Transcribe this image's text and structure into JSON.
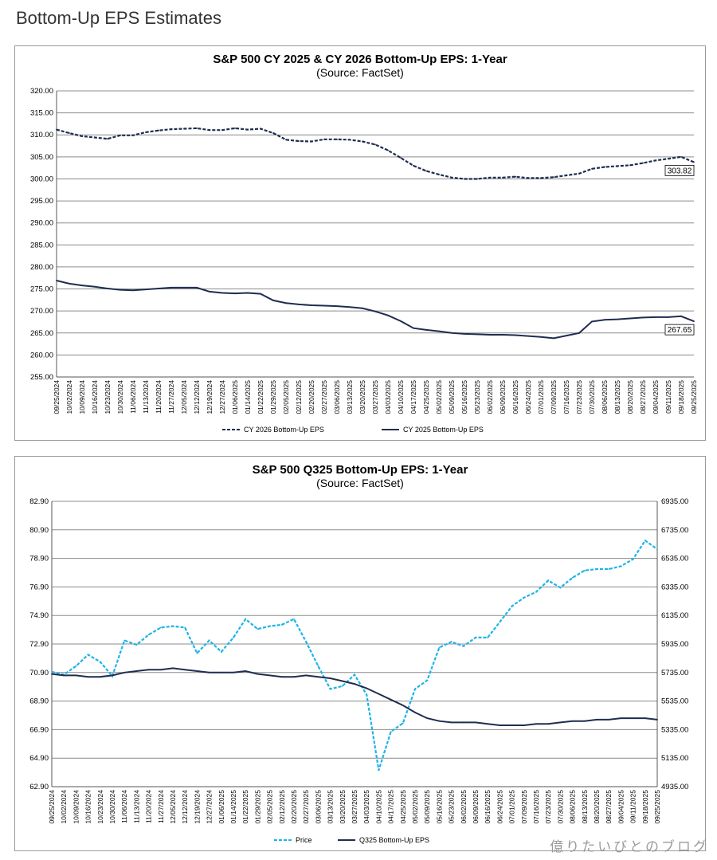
{
  "page": {
    "heading": "Bottom-Up EPS Estimates"
  },
  "watermark": "億りたいびとのブログ",
  "chart_data": [
    {
      "type": "line",
      "title": "S&P 500 CY 2025 & CY 2026 Bottom-Up EPS: 1-Year",
      "subtitle": "(Source: FactSet)",
      "ylim": [
        255,
        320
      ],
      "yticks": [
        "255.00",
        "260.00",
        "265.00",
        "270.00",
        "275.00",
        "280.00",
        "285.00",
        "290.00",
        "295.00",
        "300.00",
        "305.00",
        "310.00",
        "315.00",
        "320.00"
      ],
      "x_labels": [
        "09/25/2024",
        "10/02/2024",
        "10/09/2024",
        "10/16/2024",
        "10/23/2024",
        "10/30/2024",
        "11/06/2024",
        "11/13/2024",
        "11/20/2024",
        "11/27/2024",
        "12/05/2024",
        "12/12/2024",
        "12/19/2024",
        "12/27/2024",
        "01/06/2025",
        "01/14/2025",
        "01/22/2025",
        "01/29/2025",
        "02/05/2025",
        "02/12/2025",
        "02/20/2025",
        "02/27/2025",
        "03/06/2025",
        "03/13/2025",
        "03/20/2025",
        "03/27/2025",
        "04/03/2025",
        "04/10/2025",
        "04/17/2025",
        "04/25/2025",
        "05/02/2025",
        "05/09/2025",
        "05/16/2025",
        "05/23/2025",
        "06/02/2025",
        "06/09/2025",
        "06/16/2025",
        "06/24/2025",
        "07/01/2025",
        "07/09/2025",
        "07/16/2025",
        "07/23/2025",
        "07/30/2025",
        "08/06/2025",
        "08/13/2025",
        "08/20/2025",
        "08/27/2025",
        "09/04/2025",
        "09/11/2025",
        "09/18/2025",
        "09/25/2025"
      ],
      "series": [
        {
          "name": "CY 2026 Bottom-Up EPS",
          "style": "dashed",
          "color": "#1f2d4f",
          "end_label": "303.82",
          "values": [
            311.2,
            310.4,
            309.7,
            309.4,
            309.1,
            309.9,
            309.9,
            310.6,
            311.0,
            311.3,
            311.4,
            311.5,
            311.1,
            311.1,
            311.5,
            311.2,
            311.4,
            310.4,
            308.9,
            308.6,
            308.5,
            309.0,
            309.0,
            308.9,
            308.5,
            307.8,
            306.5,
            304.8,
            303.0,
            301.8,
            301.0,
            300.3,
            300.0,
            300.0,
            300.3,
            300.3,
            300.5,
            300.2,
            300.2,
            300.4,
            300.8,
            301.2,
            302.3,
            302.7,
            302.9,
            303.1,
            303.6,
            304.2,
            304.6,
            305.0,
            303.82
          ]
        },
        {
          "name": "CY 2025 Bottom-Up EPS",
          "style": "solid",
          "color": "#1f2d4f",
          "end_label": "267.65",
          "values": [
            276.9,
            276.2,
            275.8,
            275.5,
            275.1,
            274.8,
            274.7,
            274.9,
            275.1,
            275.3,
            275.3,
            275.3,
            274.4,
            274.1,
            274.0,
            274.1,
            273.9,
            272.4,
            271.8,
            271.5,
            271.3,
            271.2,
            271.1,
            270.9,
            270.6,
            269.9,
            269.0,
            267.7,
            266.1,
            265.7,
            265.4,
            265.0,
            264.8,
            264.7,
            264.6,
            264.6,
            264.5,
            264.3,
            264.1,
            263.8,
            264.4,
            265.0,
            267.6,
            268.0,
            268.1,
            268.3,
            268.5,
            268.6,
            268.6,
            268.8,
            267.65
          ]
        }
      ],
      "legend": [
        "CY 2026 Bottom-Up EPS",
        "CY 2025 Bottom-Up EPS"
      ]
    },
    {
      "type": "line",
      "title": "S&P 500 Q325 Bottom-Up EPS: 1-Year",
      "subtitle": "(Source: FactSet)",
      "ylim": [
        62.9,
        82.9
      ],
      "ylim_right": [
        4935,
        6935
      ],
      "yticks": [
        "62.90",
        "64.90",
        "66.90",
        "68.90",
        "70.90",
        "72.90",
        "74.90",
        "76.90",
        "78.90",
        "80.90",
        "82.90"
      ],
      "yticks_right": [
        "4935.00",
        "5135.00",
        "5335.00",
        "5535.00",
        "5735.00",
        "5935.00",
        "6135.00",
        "6335.00",
        "6535.00",
        "6735.00",
        "6935.00"
      ],
      "x_labels": [
        "09/25/2024",
        "10/02/2024",
        "10/09/2024",
        "10/16/2024",
        "10/23/2024",
        "10/30/2024",
        "11/06/2024",
        "11/13/2024",
        "11/20/2024",
        "11/27/2024",
        "12/05/2024",
        "12/12/2024",
        "12/19/2024",
        "12/27/2024",
        "01/06/2025",
        "01/14/2025",
        "01/22/2025",
        "01/29/2025",
        "02/05/2025",
        "02/12/2025",
        "02/20/2025",
        "02/27/2025",
        "03/06/2025",
        "03/13/2025",
        "03/20/2025",
        "03/27/2025",
        "04/03/2025",
        "04/10/2025",
        "04/17/2025",
        "04/25/2025",
        "05/02/2025",
        "05/09/2025",
        "05/16/2025",
        "05/23/2025",
        "06/02/2025",
        "06/09/2025",
        "06/16/2025",
        "06/24/2025",
        "07/01/2025",
        "07/09/2025",
        "07/16/2025",
        "07/23/2025",
        "07/30/2025",
        "08/06/2025",
        "08/13/2025",
        "08/20/2025",
        "08/27/2025",
        "09/04/2025",
        "09/11/2025",
        "09/18/2025",
        "09/25/2025"
      ],
      "series": [
        {
          "name": "Price",
          "axis": "right",
          "style": "dashed",
          "color": "#1fb3e8",
          "values": [
            5740,
            5720,
            5780,
            5860,
            5810,
            5710,
            5960,
            5930,
            6000,
            6050,
            6060,
            6050,
            5870,
            5960,
            5880,
            5980,
            6110,
            6040,
            6060,
            6070,
            6110,
            5950,
            5780,
            5620,
            5640,
            5720,
            5580,
            5050,
            5320,
            5380,
            5620,
            5680,
            5910,
            5950,
            5920,
            5980,
            5980,
            6090,
            6200,
            6260,
            6300,
            6380,
            6330,
            6400,
            6450,
            6460,
            6460,
            6480,
            6530,
            6660,
            6600
          ]
        },
        {
          "name": "Q325 Bottom-Up EPS",
          "axis": "left",
          "style": "solid",
          "color": "#1f2d4f",
          "values": [
            70.8,
            70.7,
            70.7,
            70.6,
            70.6,
            70.7,
            70.9,
            71.0,
            71.1,
            71.1,
            71.2,
            71.1,
            71.0,
            70.9,
            70.9,
            70.9,
            71.0,
            70.8,
            70.7,
            70.6,
            70.6,
            70.7,
            70.6,
            70.5,
            70.3,
            70.1,
            69.8,
            69.4,
            69.0,
            68.6,
            68.1,
            67.7,
            67.5,
            67.4,
            67.4,
            67.4,
            67.3,
            67.2,
            67.2,
            67.2,
            67.3,
            67.3,
            67.4,
            67.5,
            67.5,
            67.6,
            67.6,
            67.7,
            67.7,
            67.7,
            67.6
          ]
        }
      ],
      "legend": [
        "Price",
        "Q325 Bottom-Up EPS"
      ]
    }
  ]
}
